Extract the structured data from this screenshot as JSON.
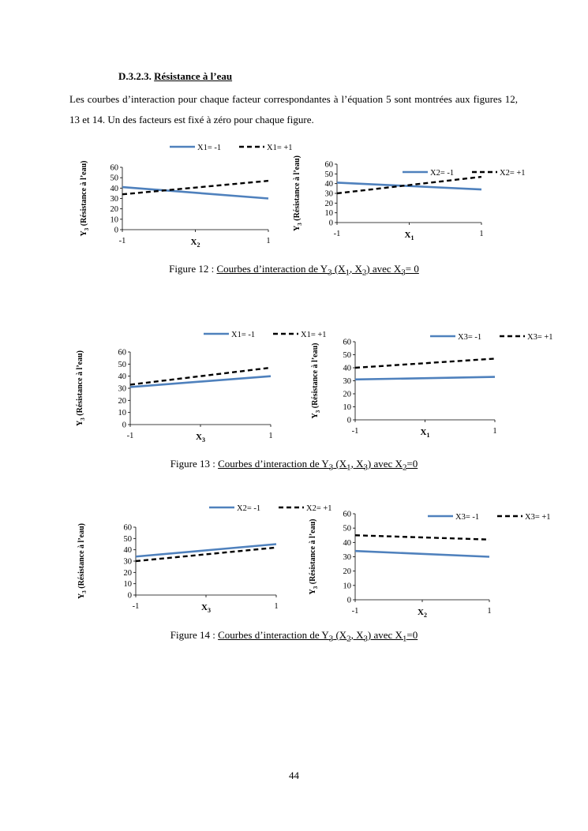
{
  "section": {
    "number": "D.3.2.3.",
    "title": "Résistance à l’eau"
  },
  "paragraph": "Les courbes d’interaction pour chaque facteur correspondantes à l’équation 5 sont montrées aux figures 12, 13 et 14. Un des facteurs est fixé à zéro pour chaque figure.",
  "figures": [
    {
      "prefix": "Figure 12 : ",
      "text": "Courbes d’interaction de Y",
      "sub1": "3",
      "mid": " (X",
      "sub2": "1",
      "sep": ", X",
      "sub3": "2",
      "end": ") avec X",
      "sub4": "3",
      "tail": "= 0"
    },
    {
      "prefix": "Figure 13 : ",
      "text": "Courbes d’interaction de Y",
      "sub1": "3",
      "mid": " (X",
      "sub2": "1",
      "sep": ", X",
      "sub3": "3",
      "end": ") avec X",
      "sub4": "2",
      "tail": "=0"
    },
    {
      "prefix": "Figure 14 : ",
      "text": "Courbes d’interaction de Y",
      "sub1": "3",
      "mid": " (X",
      "sub2": "2",
      "sep": ", X",
      "sub3": "3",
      "end": ") avec X",
      "sub4": "1",
      "tail": "=0"
    }
  ],
  "page_number": "44",
  "colors": {
    "solid": "#4f81bd",
    "dashed": "#000000"
  },
  "chart_data": [
    {
      "id": "fig12-left",
      "type": "line",
      "ylabel": "Y3 (Résistance à l’eau)",
      "xlabel": "X2",
      "x_ticks": [
        "-1",
        "1"
      ],
      "ylim": [
        0,
        60
      ],
      "y_ticks": [
        0,
        10,
        20,
        30,
        40,
        50,
        60
      ],
      "series": [
        {
          "name": "X1= -1",
          "style": "solid",
          "x": [
            -1,
            1
          ],
          "y": [
            41,
            30
          ]
        },
        {
          "name": "X1= +1",
          "style": "dashed",
          "x": [
            -1,
            1
          ],
          "y": [
            34,
            47
          ]
        }
      ],
      "legend": "top"
    },
    {
      "id": "fig12-right",
      "type": "line",
      "ylabel": "Y3 (Résistance à l’eau)",
      "xlabel": "X1",
      "x_ticks": [
        "-1",
        "1"
      ],
      "ylim": [
        0,
        60
      ],
      "y_ticks": [
        0,
        10,
        20,
        30,
        40,
        50,
        60
      ],
      "series": [
        {
          "name": "X2= -1",
          "style": "solid",
          "x": [
            -1,
            1
          ],
          "y": [
            41,
            34
          ]
        },
        {
          "name": "X2= +1",
          "style": "dashed",
          "x": [
            -1,
            1
          ],
          "y": [
            30,
            47
          ]
        }
      ],
      "legend": "top-inside"
    },
    {
      "id": "fig13-left",
      "type": "line",
      "ylabel": "Y3 (Résistance à l’eau)",
      "xlabel": "X3",
      "x_ticks": [
        "-1",
        "1"
      ],
      "ylim": [
        0,
        60
      ],
      "y_ticks": [
        0,
        10,
        20,
        30,
        40,
        50,
        60
      ],
      "series": [
        {
          "name": "X1= -1",
          "style": "solid",
          "x": [
            -1,
            1
          ],
          "y": [
            31,
            40
          ]
        },
        {
          "name": "X1= +1",
          "style": "dashed",
          "x": [
            -1,
            1
          ],
          "y": [
            33,
            47
          ]
        }
      ],
      "legend": "top"
    },
    {
      "id": "fig13-right",
      "type": "line",
      "ylabel": "Y3 (Résistance à l’eau)",
      "xlabel": "X1",
      "x_ticks": [
        "-1",
        "1"
      ],
      "ylim": [
        0,
        60
      ],
      "y_ticks": [
        0,
        10,
        20,
        30,
        40,
        50,
        60
      ],
      "series": [
        {
          "name": "X3= -1",
          "style": "solid",
          "x": [
            -1,
            1
          ],
          "y": [
            31,
            33
          ]
        },
        {
          "name": "X3= +1",
          "style": "dashed",
          "x": [
            -1,
            1
          ],
          "y": [
            40,
            47
          ]
        }
      ],
      "legend": "top"
    },
    {
      "id": "fig14-left",
      "type": "line",
      "ylabel": "Y3 (Résistance à l’eau)",
      "xlabel": "X3",
      "x_ticks": [
        "-1",
        "1"
      ],
      "ylim": [
        0,
        60
      ],
      "y_ticks": [
        0,
        10,
        20,
        30,
        40,
        50,
        60
      ],
      "series": [
        {
          "name": "X2= -1",
          "style": "solid",
          "x": [
            -1,
            1
          ],
          "y": [
            34,
            45
          ]
        },
        {
          "name": "X2= +1",
          "style": "dashed",
          "x": [
            -1,
            1
          ],
          "y": [
            30,
            42
          ]
        }
      ],
      "legend": "top"
    },
    {
      "id": "fig14-right",
      "type": "line",
      "ylabel": "Y3 (Résistance à l’eau)",
      "xlabel": "X2",
      "x_ticks": [
        "-1",
        "1"
      ],
      "ylim": [
        0,
        60
      ],
      "y_ticks": [
        0,
        10,
        20,
        30,
        40,
        50,
        60
      ],
      "series": [
        {
          "name": "X3= -1",
          "style": "solid",
          "x": [
            -1,
            1
          ],
          "y": [
            34,
            30
          ]
        },
        {
          "name": "X3= +1",
          "style": "dashed",
          "x": [
            -1,
            1
          ],
          "y": [
            45,
            42
          ]
        }
      ],
      "legend": "top-inside"
    }
  ]
}
